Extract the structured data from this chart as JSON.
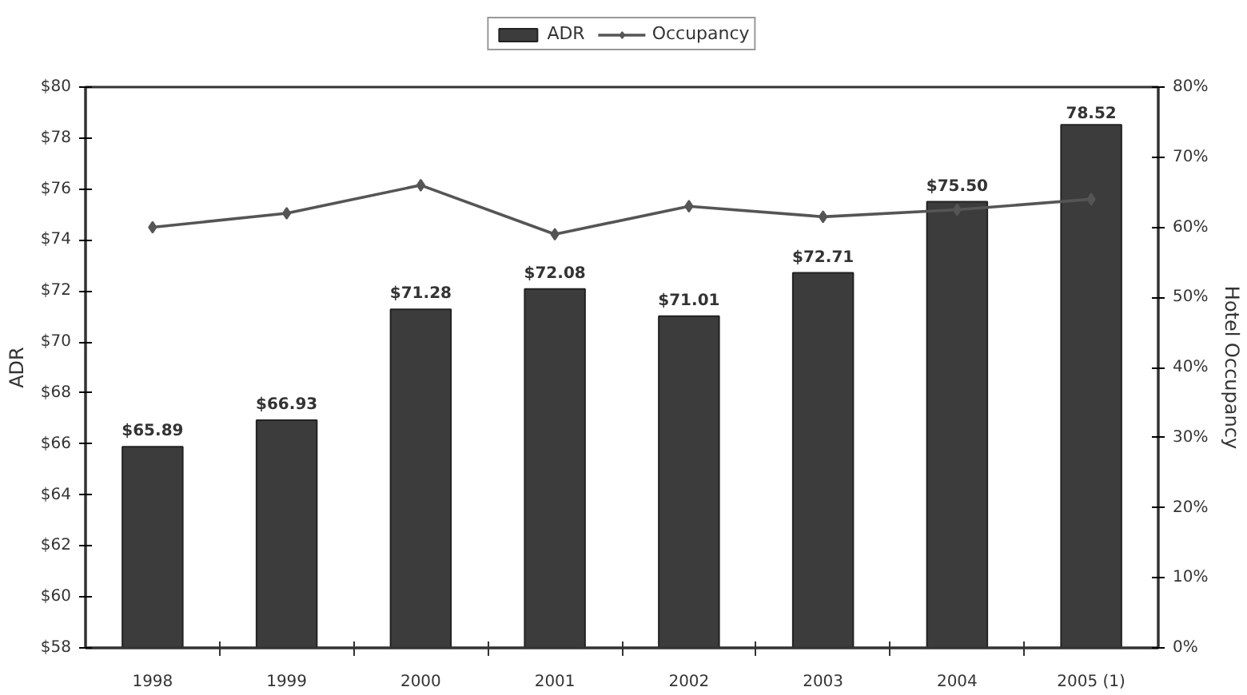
{
  "chart_data": {
    "type": "bar",
    "categories": [
      "1998",
      "1999",
      "2000",
      "2001",
      "2002",
      "2003",
      "2004",
      "2005 (1)"
    ],
    "ylabel": "ADR",
    "y2label": "Hotel Occupancy",
    "ylim": [
      58,
      80
    ],
    "yticks": [
      {
        "value": 58,
        "label": "$58"
      },
      {
        "value": 60,
        "label": "$60"
      },
      {
        "value": 62,
        "label": "$62"
      },
      {
        "value": 64,
        "label": "$64"
      },
      {
        "value": 66,
        "label": "$66"
      },
      {
        "value": 68,
        "label": "$68"
      },
      {
        "value": 70,
        "label": "$70"
      },
      {
        "value": 72,
        "label": "$72"
      },
      {
        "value": 74,
        "label": "$74"
      },
      {
        "value": 76,
        "label": "$76"
      },
      {
        "value": 78,
        "label": "$78"
      },
      {
        "value": 80,
        "label": "$80"
      }
    ],
    "y2lim": [
      0,
      80
    ],
    "y2ticks": [
      {
        "value": 0,
        "label": "0%"
      },
      {
        "value": 10,
        "label": "10%"
      },
      {
        "value": 20,
        "label": "20%"
      },
      {
        "value": 30,
        "label": "30%"
      },
      {
        "value": 40,
        "label": "40%"
      },
      {
        "value": 50,
        "label": "50%"
      },
      {
        "value": 60,
        "label": "60%"
      },
      {
        "value": 70,
        "label": "70%"
      },
      {
        "value": 80,
        "label": "80%"
      }
    ],
    "series": [
      {
        "name": "ADR",
        "color": "#3c3c3c",
        "values": [
          65.89,
          66.93,
          71.28,
          72.08,
          71.01,
          72.71,
          75.5,
          78.52
        ],
        "value_labels": [
          "$65.89",
          "$66.93",
          "$71.28",
          "$72.08",
          "$71.01",
          "$72.71",
          "$75.50",
          "78.52"
        ]
      },
      {
        "name": "Occupancy",
        "type": "line",
        "axis": "y2",
        "color": "#555555",
        "values": [
          60,
          62,
          66,
          59,
          63,
          61.5,
          62.5,
          64
        ]
      }
    ],
    "marker": "diamond",
    "line_style": "solid",
    "legend": "top",
    "grid": false
  }
}
